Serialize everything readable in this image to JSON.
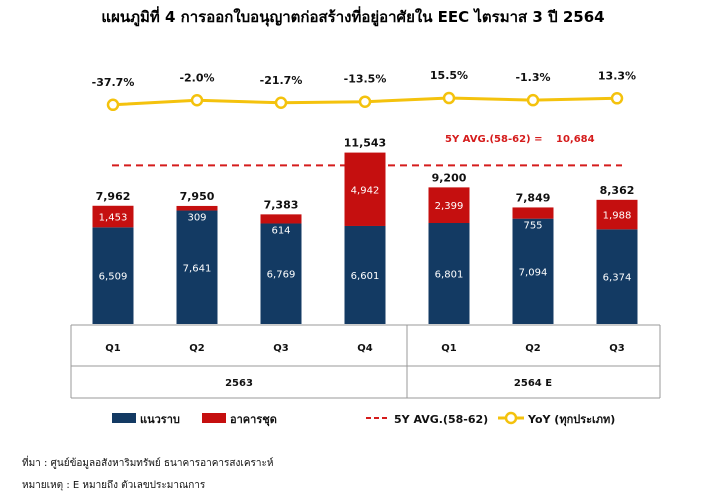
{
  "chart_data": {
    "type": "bar",
    "title": "แผนภูมิที่ 4 การออกใบอนุญาตก่อสร้างที่อยู่อาศัยใน EEC ไตรมาส 3 ปี 2564",
    "categories": [
      "Q1",
      "Q2",
      "Q3",
      "Q4",
      "Q1",
      "Q2",
      "Q3"
    ],
    "groups": [
      {
        "label": "2563",
        "count": 4
      },
      {
        "label": "2564 E",
        "count": 3
      }
    ],
    "series": [
      {
        "name": "แนวราบ",
        "color": "#133a63",
        "values": [
          6509,
          7641,
          6769,
          6601,
          6801,
          7094,
          6374
        ]
      },
      {
        "name": "อาคารชุด",
        "color": "#c50f0f",
        "values": [
          1453,
          309,
          614,
          4942,
          2399,
          755,
          1988
        ]
      }
    ],
    "totals": [
      "7,962",
      "7,950",
      "7,383",
      "11,543",
      "9,200",
      "7,849",
      "8,362"
    ],
    "yoy": {
      "name": "YoY (ทุกประเภท)",
      "color": "#f4c20d",
      "values": [
        -37.7,
        -2.0,
        -21.7,
        -13.5,
        15.5,
        -1.3,
        13.3
      ],
      "labels": [
        "-37.7%",
        "-2.0%",
        "-21.7%",
        "-13.5%",
        "15.5%",
        "-1.3%",
        "13.3%"
      ]
    },
    "average": {
      "name": "5Y AVG.(58-62)",
      "value": 10684,
      "label": "5Y AVG.(58-62) =",
      "value_label": "10,684",
      "color": "#d51c1c"
    },
    "ylim": [
      0,
      12000
    ],
    "grid": false,
    "legend_position": "bottom"
  },
  "footer": {
    "source": "ที่มา : ศูนย์ข้อมูลอสังหาริมทรัพย์ ธนาคารอาคารสงเคราะห์",
    "note": "หมายเหตุ : E หมายถึง ตัวเลขประมาณการ"
  }
}
